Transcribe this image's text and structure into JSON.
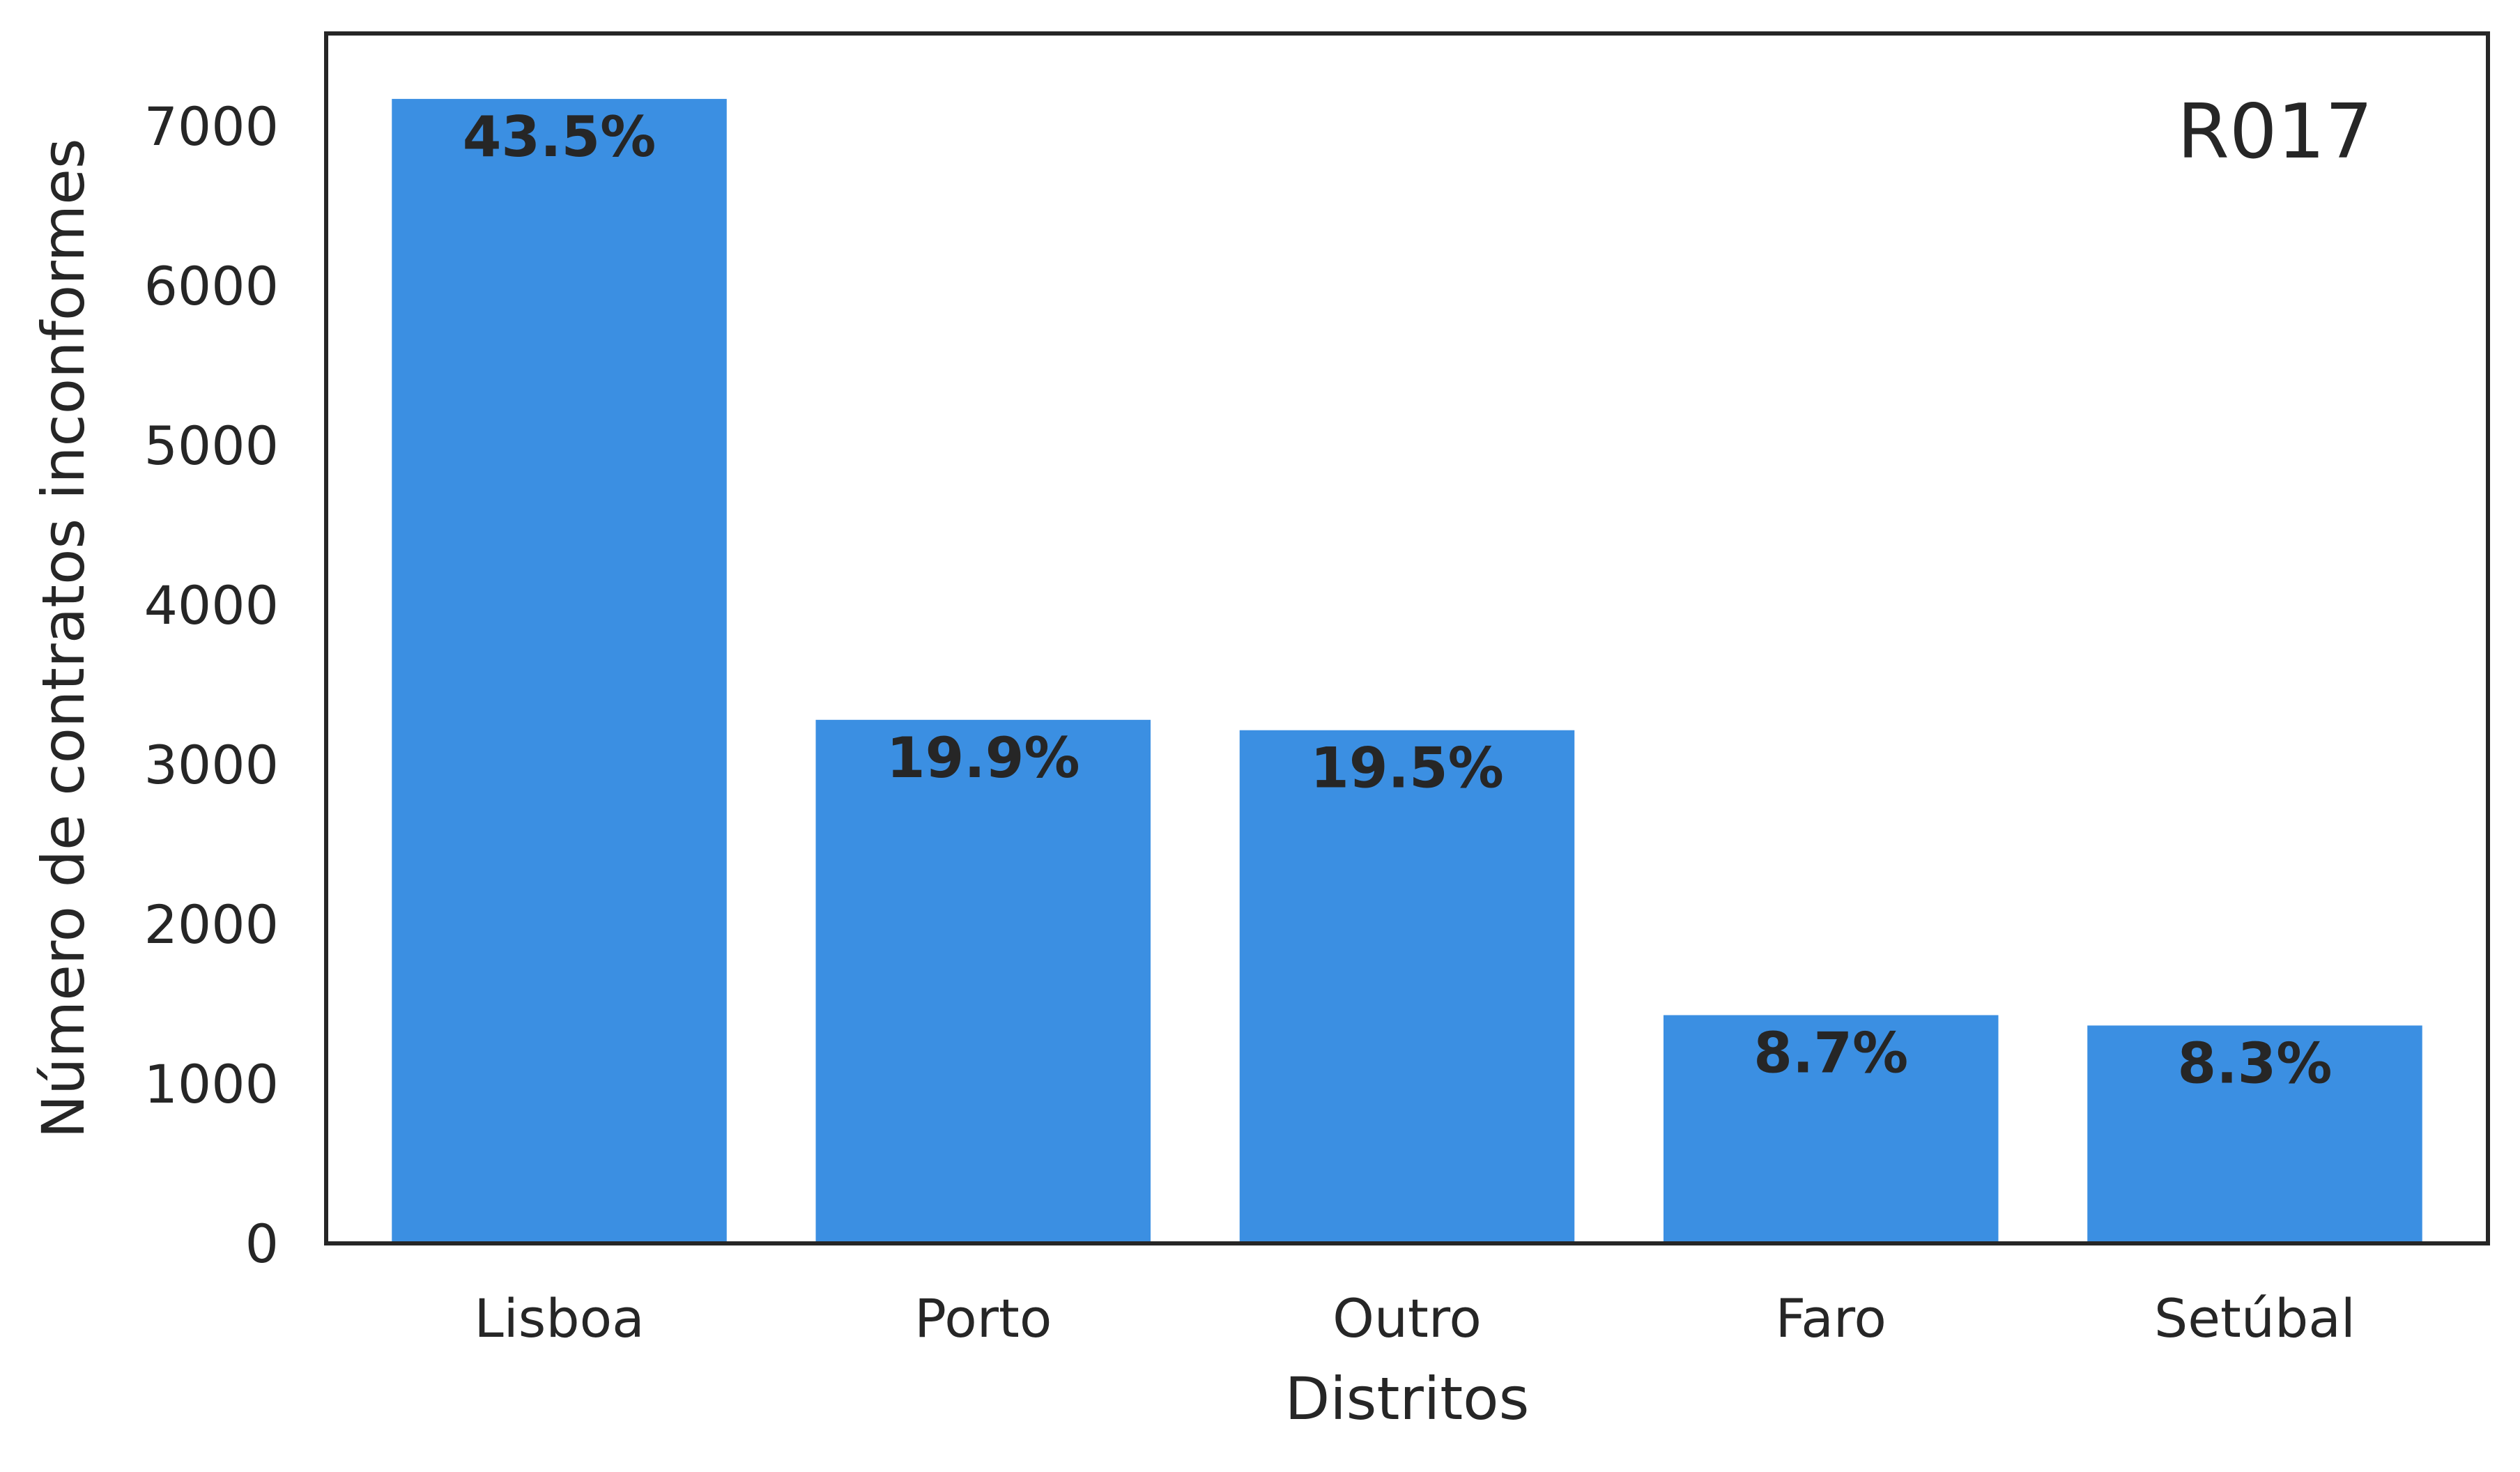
{
  "chart_data": {
    "type": "bar",
    "categories": [
      "Lisboa",
      "Porto",
      "Outro",
      "Faro",
      "Setúbal"
    ],
    "values": [
      7170,
      3280,
      3215,
      1430,
      1365
    ],
    "data_labels": [
      "43.5%",
      "19.9%",
      "19.5%",
      "8.7%",
      "8.3%"
    ],
    "title": "",
    "xlabel": "Distritos",
    "ylabel": "Número de contratos inconformes",
    "ylim": [
      0,
      7580
    ],
    "yticks": [
      0,
      1000,
      2000,
      3000,
      4000,
      5000,
      6000,
      7000
    ],
    "annotation": "R017",
    "grid": false,
    "legend": "none",
    "colors": {
      "bar": "#3b8fe2",
      "text": "#262626",
      "frame": "#262626"
    }
  }
}
